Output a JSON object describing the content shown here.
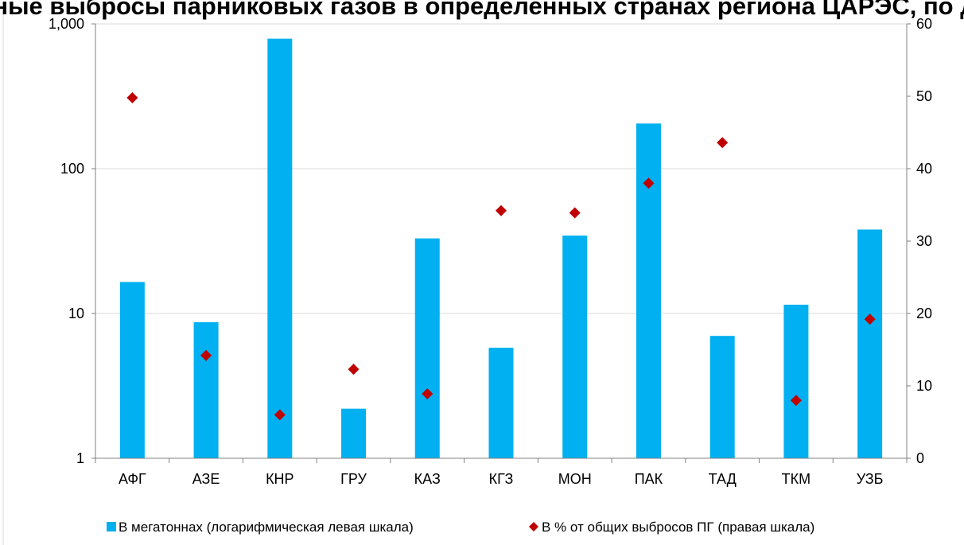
{
  "chart_data": {
    "type": "bar",
    "title": "ународные выбросы парниковых газов в определенных странах региона ЦАРЭС, по данным",
    "categories": [
      "АФГ",
      "АЗЕ",
      "КНР",
      "ГРУ",
      "КАЗ",
      "КГЗ",
      "МОН",
      "ПАК",
      "ТАД",
      "ТКМ",
      "УЗБ"
    ],
    "series": [
      {
        "name": "В мегатоннах (логарифмическая левая шкала)",
        "type": "bar",
        "axis": "left",
        "color": "#00B0F0",
        "values": [
          16.5,
          8.7,
          790,
          2.2,
          33,
          5.8,
          34.5,
          205,
          7.0,
          11.5,
          38
        ]
      },
      {
        "name": "В % от общих выбросов ПГ (правая шкала)",
        "type": "scatter",
        "marker": "diamond",
        "axis": "right",
        "color": "#C00000",
        "values": [
          49.8,
          14.2,
          6.0,
          12.3,
          8.9,
          34.2,
          33.9,
          38.0,
          null,
          8.0,
          19.2
        ],
        "extra_points": [
          {
            "x_index": 8,
            "value": 43.6
          }
        ]
      }
    ],
    "y_left": {
      "scale": "log",
      "ylim": [
        1,
        1000
      ],
      "ticks": [
        1,
        10,
        100,
        1000
      ],
      "tick_labels": [
        "1",
        "10",
        "100",
        "1,000"
      ]
    },
    "y_right": {
      "scale": "linear",
      "ylim": [
        0,
        60
      ],
      "ticks": [
        0,
        10,
        20,
        30,
        40,
        50,
        60
      ],
      "tick_labels": [
        "0",
        "10",
        "20",
        "30",
        "40",
        "50",
        "60"
      ]
    },
    "grid": true,
    "legend_position": "bottom"
  }
}
